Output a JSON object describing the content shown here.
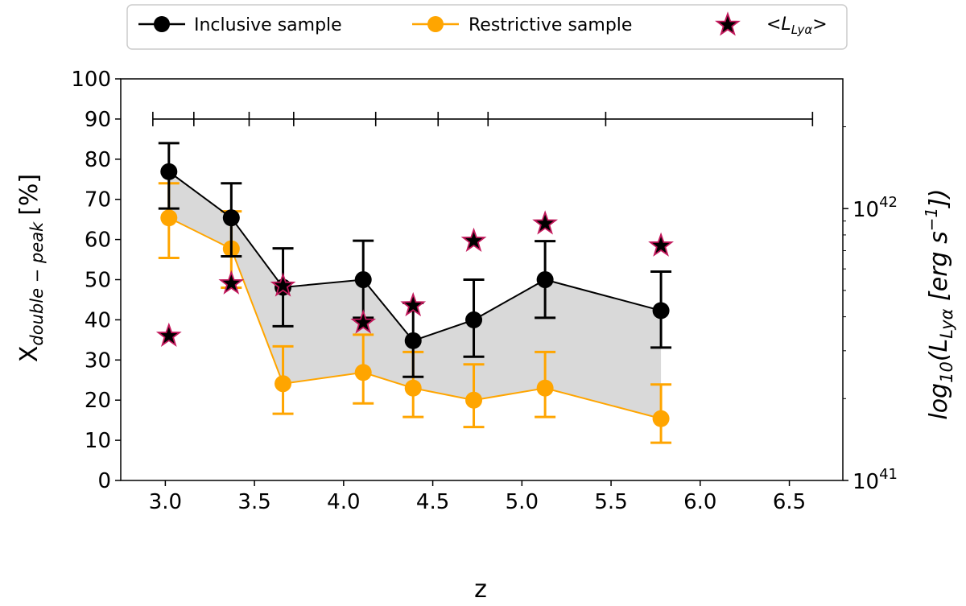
{
  "chart_data": {
    "type": "line",
    "title": "",
    "xlabel": "z",
    "ylabel": "X_double-peak [%]",
    "ylabel_main": "X",
    "ylabel_sub": "double − peak",
    "ylabel_unit": "[%]",
    "y2label": "log10(L_Lyα [erg s^-1])",
    "y2label_parts": {
      "prefix": "log",
      "base_sub": "10",
      "open": "(",
      "L": "L",
      "L_sub": "Lyα",
      "units": " [erg s",
      "exp": "−1",
      "close": "])"
    },
    "xlim": [
      2.75,
      6.8
    ],
    "ylim": [
      0,
      100
    ],
    "y2lim_log": [
      1e+41,
      3e+42
    ],
    "xticks": [
      "3.0",
      "3.5",
      "4.0",
      "4.5",
      "5.0",
      "5.5",
      "6.0",
      "6.5"
    ],
    "yticks": [
      "0",
      "10",
      "20",
      "30",
      "40",
      "50",
      "60",
      "70",
      "80",
      "90",
      "100"
    ],
    "y2ticks": [
      {
        "value": 1e+41,
        "base": "10",
        "exp": "41"
      },
      {
        "value": 1e+42,
        "base": "10",
        "exp": "42"
      }
    ],
    "x": [
      3.02,
      3.37,
      3.66,
      4.11,
      4.39,
      4.73,
      5.13,
      5.78
    ],
    "series": [
      {
        "name": "Inclusive sample",
        "color": "#000000",
        "values": [
          76.9,
          65.4,
          48.1,
          50.0,
          34.8,
          40.0,
          50.0,
          42.3
        ],
        "err_low": [
          9.2,
          9.6,
          9.7,
          9.5,
          9.0,
          9.2,
          9.5,
          9.2
        ],
        "err_high": [
          7.1,
          8.6,
          9.7,
          9.7,
          9.4,
          10.0,
          9.6,
          9.7
        ]
      },
      {
        "name": "Restrictive sample",
        "color": "#FFA500",
        "values": [
          65.4,
          57.7,
          24.1,
          26.9,
          23.0,
          20.0,
          23.0,
          15.4
        ],
        "err_low": [
          10.0,
          9.7,
          7.5,
          7.7,
          7.2,
          6.7,
          7.2,
          6.0
        ],
        "err_high": [
          8.6,
          9.3,
          9.3,
          9.4,
          9.0,
          8.9,
          9.0,
          8.5
        ]
      }
    ],
    "lya_series": {
      "name": "<L_Lyα>",
      "label_parts": {
        "open": "<L",
        "sub": "Lyα",
        "close": ">"
      },
      "color": "#000000",
      "edge_color": "#C2185B",
      "values": [
        3.4e+41,
        5.3e+41,
        5.2e+41,
        3.8e+41,
        4.4e+41,
        7.6e+41,
        8.8e+41,
        7.3e+41
      ]
    },
    "bins": [
      2.93,
      3.16,
      3.47,
      3.72,
      4.18,
      4.53,
      4.81,
      5.47,
      6.63
    ],
    "bins_y": 90,
    "fill_between_color": "#d9d9d9",
    "legend": "top-center"
  }
}
